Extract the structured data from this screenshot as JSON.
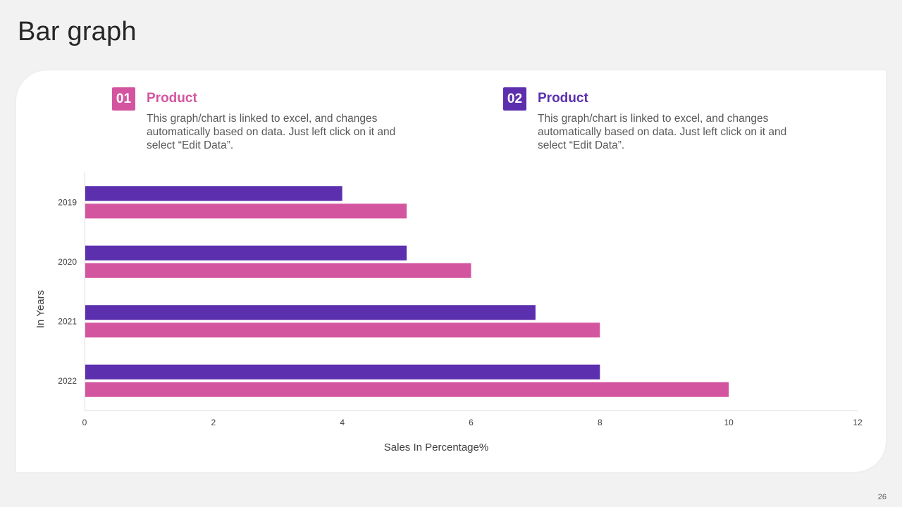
{
  "title": "Bar graph",
  "page_number": "26",
  "legend": [
    {
      "badge": "01",
      "title": "Product",
      "desc": "This graph/chart is linked to excel, and changes automatically based on data. Just left click on it and select “Edit Data”.",
      "color": "#d4559f"
    },
    {
      "badge": "02",
      "title": "Product",
      "desc": "This graph/chart is linked to excel, and changes automatically based on data. Just left click on it and select “Edit Data”.",
      "color": "#5b2fae"
    }
  ],
  "chart_data": {
    "type": "bar",
    "orientation": "horizontal",
    "categories": [
      "2019",
      "2020",
      "2021",
      "2022"
    ],
    "series": [
      {
        "values": [
          4,
          5,
          7,
          8
        ],
        "color": "#5b2fae"
      },
      {
        "values": [
          5,
          6,
          8,
          10
        ],
        "color": "#d4559f"
      }
    ],
    "xlabel": "Sales In Percentage%",
    "ylabel": "In Years",
    "xlim": [
      0,
      12
    ],
    "xticks": [
      0,
      2,
      4,
      6,
      8,
      10,
      12
    ],
    "grid": false
  }
}
